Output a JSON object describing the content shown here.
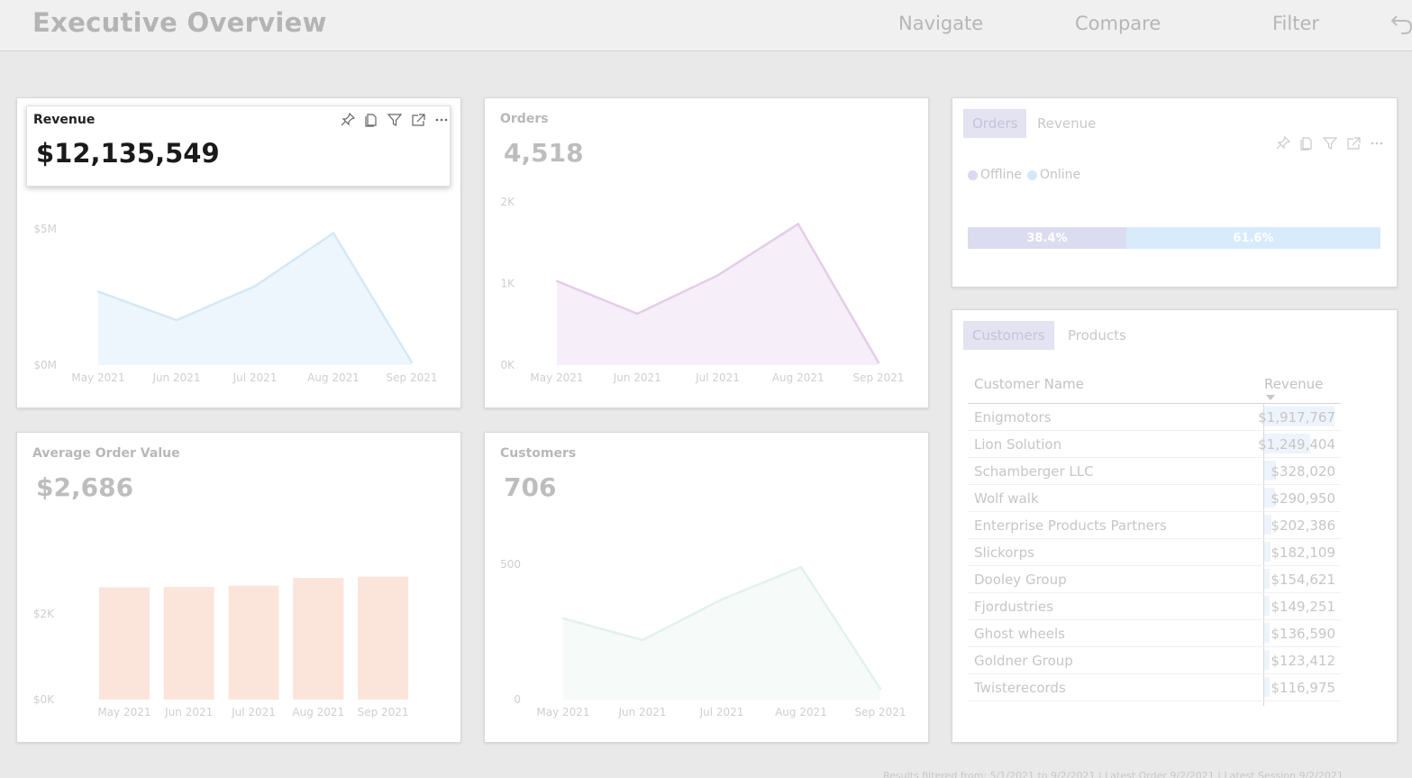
{
  "header": {
    "title": "Executive Overview",
    "nav": [
      "Navigate",
      "Compare",
      "Filter"
    ],
    "back_icon": "undo-icon"
  },
  "colors": {
    "revenue": "#d4e8f7",
    "revenue_fill": "#eef6fd",
    "orders": "#e3cde7",
    "orders_fill": "#f6eef8",
    "aov_bar": "#fbe4da",
    "customers": "#e2f1ec",
    "customers_fill": "#f6faf8",
    "offline": "#dcdcf0",
    "online": "#d7ebfb"
  },
  "revenue_card": {
    "title": "Revenue",
    "value": "$12,135,549",
    "icons": [
      "pin-icon",
      "copy-icon",
      "filter-icon",
      "expand-icon",
      "more-options-icon"
    ]
  },
  "orders_card": {
    "title": "Orders",
    "value": "4,518"
  },
  "aov_card": {
    "title": "Average Order Value",
    "value": "$2,686"
  },
  "customers_card": {
    "title": "Customers",
    "value": "706"
  },
  "split_card": {
    "tabs": [
      "Orders",
      "Revenue"
    ],
    "legend": [
      "Offline",
      "Online"
    ],
    "offline_pct": "38.4%",
    "online_pct": "61.6%"
  },
  "table_card": {
    "tabs": [
      "Customers",
      "Products"
    ],
    "columns": [
      "Customer Name",
      "Revenue"
    ],
    "rows": [
      {
        "name": "Enigmotors",
        "revenue": "$1,917,767",
        "amount": 1917767
      },
      {
        "name": "Lion Solution",
        "revenue": "$1,249,404",
        "amount": 1249404
      },
      {
        "name": "Schamberger LLC",
        "revenue": "$328,020",
        "amount": 328020
      },
      {
        "name": "Wolf walk",
        "revenue": "$290,950",
        "amount": 290950
      },
      {
        "name": "Enterprise Products Partners",
        "revenue": "$202,386",
        "amount": 202386
      },
      {
        "name": "Slickorps",
        "revenue": "$182,109",
        "amount": 182109
      },
      {
        "name": "Dooley Group",
        "revenue": "$154,621",
        "amount": 154621
      },
      {
        "name": "Fjordustries",
        "revenue": "$149,251",
        "amount": 149251
      },
      {
        "name": "Ghost wheels",
        "revenue": "$136,590",
        "amount": 136590
      },
      {
        "name": "Goldner Group",
        "revenue": "$123,412",
        "amount": 123412
      },
      {
        "name": "Twisterecords",
        "revenue": "$116,975",
        "amount": 116975
      }
    ]
  },
  "footer": "Results filtered from: 5/1/2021 to 9/2/2021 | Latest Order 9/2/2021 | Latest Session 9/2/2021",
  "chart_data": [
    {
      "type": "area",
      "categories": [
        "May 2021",
        "Jun 2021",
        "Jul 2021",
        "Aug 2021",
        "Sep 2021"
      ],
      "values": [
        2.7,
        1.65,
        2.9,
        4.85,
        0.1
      ],
      "ytick_labels": [
        "$0M",
        "$5M"
      ],
      "ytick_values": [
        0,
        5
      ],
      "ylim": [
        0,
        5
      ]
    },
    {
      "type": "area",
      "categories": [
        "May 2021",
        "Jun 2021",
        "Jul 2021",
        "Aug 2021",
        "Sep 2021"
      ],
      "values": [
        1030,
        630,
        1100,
        1730,
        30
      ],
      "ytick_labels": [
        "0K",
        "1K",
        "2K"
      ],
      "ytick_values": [
        0,
        1000,
        2000
      ],
      "ylim": [
        0,
        2000
      ]
    },
    {
      "type": "bar",
      "categories": [
        "May 2021",
        "Jun 2021",
        "Jul 2021",
        "Aug 2021",
        "Sep 2021"
      ],
      "values": [
        2620,
        2630,
        2660,
        2840,
        2870
      ],
      "ytick_labels": [
        "$0K",
        "$2K"
      ],
      "ytick_values": [
        0,
        2000
      ],
      "ylim": [
        0,
        4000
      ]
    },
    {
      "type": "area",
      "categories": [
        "May 2021",
        "Jun 2021",
        "Jul 2021",
        "Aug 2021",
        "Sep 2021"
      ],
      "values": [
        300,
        220,
        370,
        490,
        40
      ],
      "ytick_labels": [
        "0",
        "500"
      ],
      "ytick_values": [
        0,
        500
      ],
      "ylim": [
        0,
        500
      ]
    }
  ]
}
